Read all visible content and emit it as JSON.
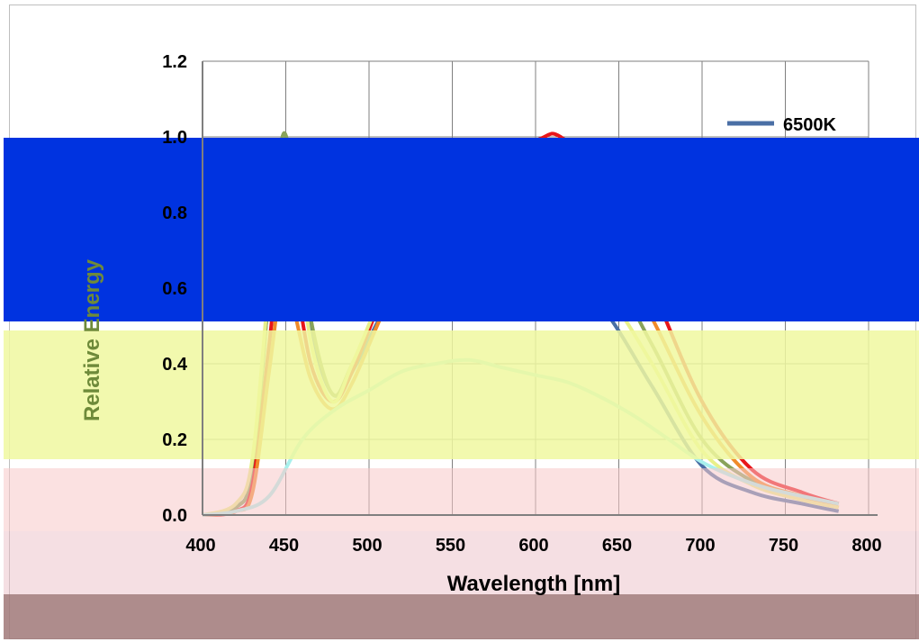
{
  "chart_data": {
    "type": "line",
    "xlabel": "Wavelength  [nm]",
    "ylabel": "Relative Energy",
    "xlim": [
      400,
      800
    ],
    "ylim": [
      0,
      1.2
    ],
    "x_ticks": [
      "400",
      "450",
      "500",
      "550",
      "600",
      "650",
      "700",
      "750",
      "800"
    ],
    "y_ticks": [
      "0.0",
      "0.2",
      "0.4",
      "0.6",
      "0.8",
      "1.0",
      "1.2"
    ],
    "grid": true,
    "legend_position": "top-right",
    "series": [
      {
        "name": "6500K",
        "color": "#4a6fa5",
        "x": [
          400,
          420,
          430,
          440,
          448,
          455,
          465,
          478,
          490,
          510,
          530,
          560,
          600,
          640,
          670,
          700,
          730,
          760,
          782
        ],
        "y": [
          0.0,
          0.02,
          0.12,
          0.6,
          1.0,
          0.85,
          0.5,
          0.32,
          0.38,
          0.55,
          0.68,
          0.78,
          0.74,
          0.55,
          0.34,
          0.13,
          0.06,
          0.03,
          0.01
        ]
      },
      {
        "name": "",
        "color": "#8aa35a",
        "x": [
          400,
          420,
          430,
          440,
          448,
          455,
          465,
          478,
          490,
          510,
          530,
          560,
          600,
          640,
          670,
          700,
          730,
          760,
          782
        ],
        "y": [
          0.0,
          0.02,
          0.12,
          0.6,
          1.0,
          0.86,
          0.52,
          0.32,
          0.4,
          0.6,
          0.75,
          0.86,
          0.85,
          0.68,
          0.45,
          0.2,
          0.09,
          0.05,
          0.03
        ]
      },
      {
        "name": "",
        "color": "#e8161a",
        "x": [
          400,
          420,
          430,
          440,
          448,
          455,
          465,
          478,
          490,
          510,
          530,
          560,
          600,
          615,
          640,
          670,
          700,
          730,
          760,
          782
        ],
        "y": [
          0.0,
          0.01,
          0.08,
          0.45,
          0.75,
          0.65,
          0.4,
          0.3,
          0.38,
          0.6,
          0.78,
          0.92,
          0.99,
          1.0,
          0.88,
          0.6,
          0.3,
          0.12,
          0.06,
          0.03
        ]
      },
      {
        "name": "",
        "color": "#f08b2a",
        "x": [
          400,
          420,
          430,
          440,
          448,
          455,
          465,
          478,
          490,
          510,
          530,
          560,
          600,
          640,
          670,
          700,
          730,
          760,
          782
        ],
        "y": [
          0.0,
          0.01,
          0.06,
          0.38,
          0.62,
          0.54,
          0.36,
          0.28,
          0.35,
          0.55,
          0.7,
          0.82,
          0.86,
          0.76,
          0.52,
          0.26,
          0.1,
          0.05,
          0.02
        ]
      },
      {
        "name": "",
        "color": "#e8f08a",
        "x": [
          400,
          420,
          430,
          440,
          448,
          455,
          465,
          478,
          490,
          510,
          530,
          560,
          600,
          640,
          670,
          700,
          730,
          760,
          782
        ],
        "y": [
          0.0,
          0.03,
          0.15,
          0.62,
          0.98,
          0.8,
          0.46,
          0.3,
          0.4,
          0.6,
          0.72,
          0.8,
          0.76,
          0.6,
          0.4,
          0.17,
          0.08,
          0.04,
          0.02
        ]
      },
      {
        "name": "",
        "color": "#a8f0ec",
        "x": [
          400,
          420,
          440,
          460,
          480,
          500,
          520,
          540,
          560,
          580,
          600,
          620,
          640,
          660,
          680,
          700,
          720,
          740,
          760,
          782
        ],
        "y": [
          0.0,
          0.01,
          0.05,
          0.2,
          0.28,
          0.33,
          0.38,
          0.4,
          0.41,
          0.39,
          0.37,
          0.35,
          0.31,
          0.26,
          0.2,
          0.14,
          0.1,
          0.07,
          0.05,
          0.03
        ]
      }
    ]
  },
  "overlays": {
    "blue": "#0033e0",
    "yellow": "#f0f8a0",
    "pink": "#f8c8c8",
    "mauve": "#e8b8c0",
    "brown": "#a07878"
  }
}
